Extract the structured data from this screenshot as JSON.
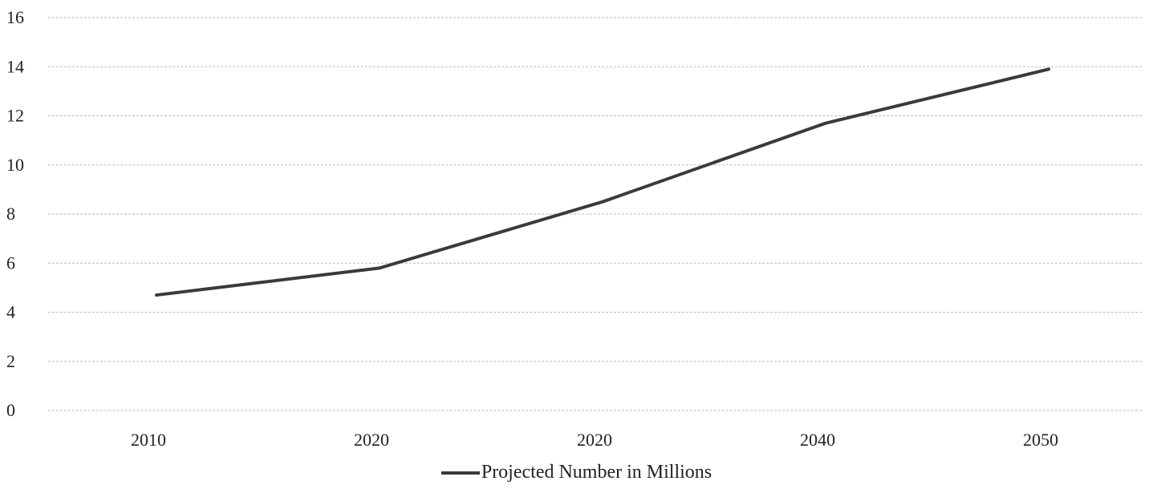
{
  "chart_data": {
    "type": "line",
    "categories": [
      "2010",
      "2020",
      "2020",
      "2040",
      "2050"
    ],
    "series": [
      {
        "name": "Projected Number in Millions",
        "values": [
          4.7,
          5.8,
          8.5,
          11.7,
          13.9
        ]
      }
    ],
    "ylim": [
      0,
      16
    ],
    "yticks": [
      0,
      2,
      4,
      6,
      8,
      10,
      12,
      14,
      16
    ],
    "grid": true,
    "legend": "bottom-center",
    "line_color": "#3a3a3a",
    "grid_color": "#bdbdbd"
  }
}
